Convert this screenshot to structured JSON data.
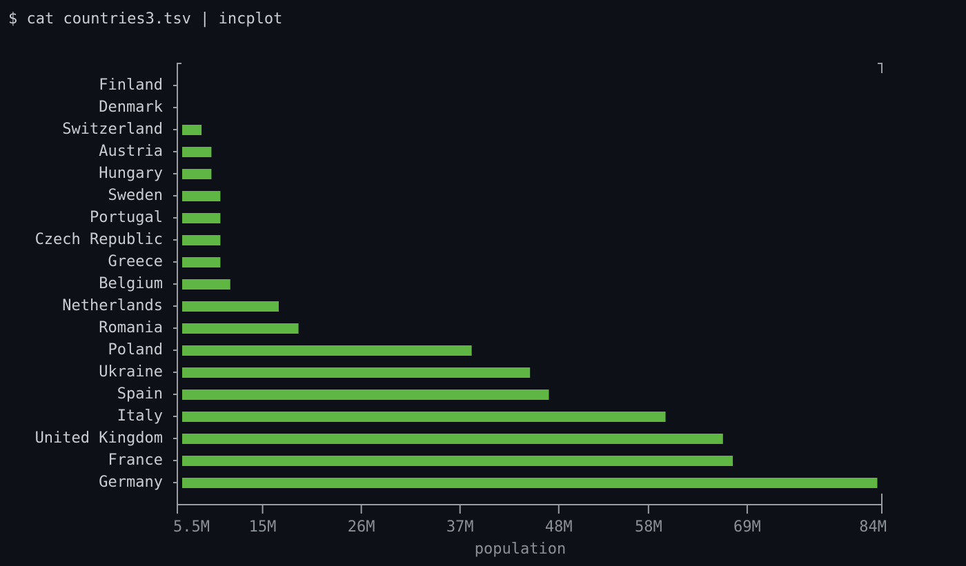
{
  "prompt": "$ cat countries3.tsv | incplot",
  "chart_data": {
    "type": "bar",
    "orientation": "horizontal",
    "x_label": "population",
    "categories": [
      "Finland",
      "Denmark",
      "Switzerland",
      "Austria",
      "Hungary",
      "Sweden",
      "Portugal",
      "Czech Republic",
      "Greece",
      "Belgium",
      "Netherlands",
      "Romania",
      "Poland",
      "Ukraine",
      "Spain",
      "Italy",
      "United Kingdom",
      "France",
      "Germany"
    ],
    "values": [
      5.5,
      5.8,
      8.2,
      9.3,
      9.3,
      10.3,
      10.3,
      10.3,
      10.3,
      11.4,
      16.8,
      19.0,
      38.3,
      44.8,
      46.9,
      59.9,
      66.3,
      67.4,
      83.5
    ],
    "color": "#5fb642",
    "xlim": [
      5.5,
      84
    ],
    "xticks": [
      {
        "value": 5.5,
        "label": "5.5M"
      },
      {
        "value": 15,
        "label": "15M"
      },
      {
        "value": 26,
        "label": "26M"
      },
      {
        "value": 37,
        "label": "37M"
      },
      {
        "value": 48,
        "label": "48M"
      },
      {
        "value": 58,
        "label": "58M"
      },
      {
        "value": 69,
        "label": "69M"
      },
      {
        "value": 84,
        "label": "84M"
      }
    ]
  }
}
